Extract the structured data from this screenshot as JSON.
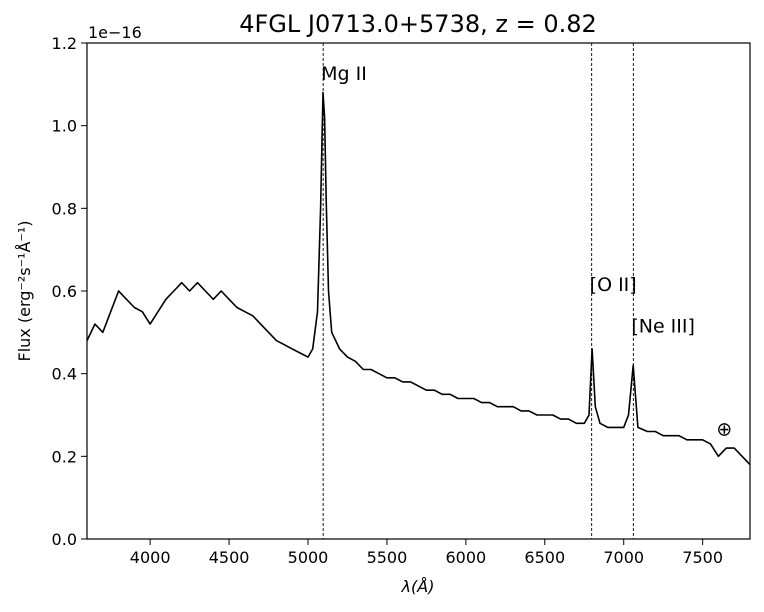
{
  "chart_data": {
    "type": "line",
    "title": "4FGL J0713.0+5738, z = 0.82",
    "xlabel": "λ(Å)",
    "ylabel": "Flux (erg⁻²s⁻¹Å⁻¹)",
    "y_offset_label": "1e−16",
    "xlim": [
      3600,
      7800
    ],
    "ylim": [
      0.0,
      1.2
    ],
    "x_ticks": [
      4000,
      4500,
      5000,
      5500,
      6000,
      6500,
      7000,
      7500
    ],
    "x_tick_labels": [
      "4000",
      "4500",
      "5000",
      "5500",
      "6000",
      "6500",
      "7000",
      "7500"
    ],
    "y_ticks": [
      0.0,
      0.2,
      0.4,
      0.6,
      0.8,
      1.0,
      1.2
    ],
    "y_tick_labels": [
      "0.0",
      "0.2",
      "0.4",
      "0.6",
      "0.8",
      "1.0",
      "1.2"
    ],
    "grid": false,
    "line_color": "#000000",
    "series": [
      {
        "x": [
          3600,
          3650,
          3700,
          3750,
          3800,
          3850,
          3900,
          3950,
          4000,
          4050,
          4100,
          4150,
          4200,
          4250,
          4300,
          4350,
          4400,
          4450,
          4500,
          4550,
          4600,
          4650,
          4700,
          4750,
          4800,
          4850,
          4900,
          4950,
          5000,
          5030,
          5060,
          5080,
          5095,
          5105,
          5115,
          5130,
          5150,
          5200,
          5250,
          5300,
          5350,
          5400,
          5450,
          5500,
          5550,
          5600,
          5650,
          5700,
          5750,
          5800,
          5850,
          5900,
          5950,
          6000,
          6050,
          6100,
          6150,
          6200,
          6250,
          6300,
          6350,
          6400,
          6450,
          6500,
          6550,
          6600,
          6650,
          6700,
          6750,
          6780,
          6800,
          6820,
          6850,
          6900,
          6950,
          7000,
          7030,
          7060,
          7090,
          7150,
          7200,
          7250,
          7300,
          7350,
          7400,
          7450,
          7500,
          7550,
          7600,
          7650,
          7700,
          7750,
          7800
        ],
        "y": [
          0.48,
          0.52,
          0.5,
          0.55,
          0.6,
          0.58,
          0.56,
          0.55,
          0.52,
          0.55,
          0.58,
          0.6,
          0.62,
          0.6,
          0.62,
          0.6,
          0.58,
          0.6,
          0.58,
          0.56,
          0.55,
          0.54,
          0.52,
          0.5,
          0.48,
          0.47,
          0.46,
          0.45,
          0.44,
          0.46,
          0.55,
          0.8,
          1.08,
          1.02,
          0.82,
          0.6,
          0.5,
          0.46,
          0.44,
          0.43,
          0.41,
          0.41,
          0.4,
          0.39,
          0.39,
          0.38,
          0.38,
          0.37,
          0.36,
          0.36,
          0.35,
          0.35,
          0.34,
          0.34,
          0.34,
          0.33,
          0.33,
          0.32,
          0.32,
          0.32,
          0.31,
          0.31,
          0.3,
          0.3,
          0.3,
          0.29,
          0.29,
          0.28,
          0.28,
          0.3,
          0.46,
          0.32,
          0.28,
          0.27,
          0.27,
          0.27,
          0.3,
          0.42,
          0.27,
          0.26,
          0.26,
          0.25,
          0.25,
          0.25,
          0.24,
          0.24,
          0.24,
          0.23,
          0.2,
          0.22,
          0.22,
          0.2,
          0.18
        ]
      }
    ],
    "vlines": [
      {
        "x": 5096,
        "style": "dashed"
      },
      {
        "x": 6797,
        "style": "dashed"
      },
      {
        "x": 7061,
        "style": "dashed"
      }
    ],
    "annotations": [
      {
        "text": "Mg II",
        "x": 5096,
        "y": 1.11
      },
      {
        "text": "[O II]",
        "x": 6797,
        "y": 0.6
      },
      {
        "text": "[Ne III]",
        "x": 7061,
        "y": 0.5
      },
      {
        "text": "⊕",
        "x": 7600,
        "y": 0.25
      }
    ]
  }
}
